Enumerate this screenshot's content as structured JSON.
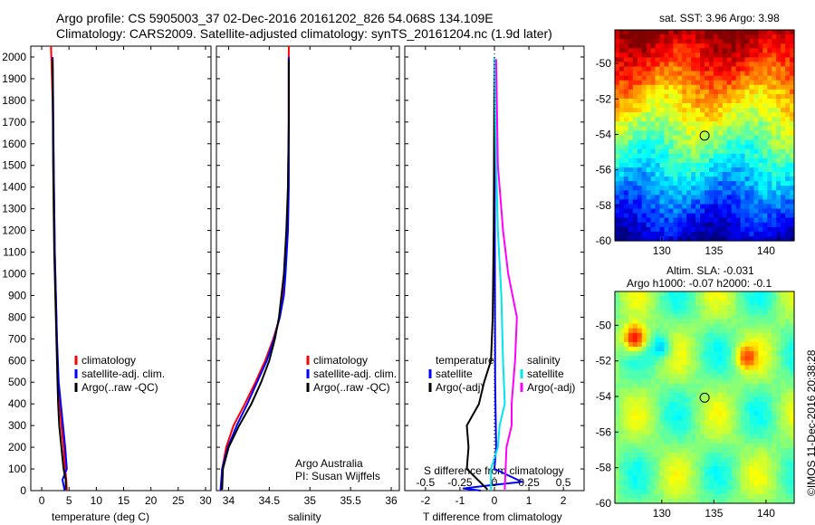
{
  "header": {
    "title_line1": "Argo profile: CS 5905003_37 02-Dec-2016 20161202_826 54.068S 134.109E",
    "title_line2": "Climatology: CARS2009. Satellite-adjusted climatology: synTS_20161204.nc (1.9d later)"
  },
  "colors": {
    "climatology": "#ff0000",
    "satellite": "#0000ff",
    "argo": "#000000",
    "salinity_satellite": "#00e5ee",
    "salinity_argo": "#ff00ff"
  },
  "chart_data": [
    {
      "type": "line",
      "name": "temperature",
      "xlabel": "temperature (deg C)",
      "ylabel": "",
      "xlim": [
        -2,
        31
      ],
      "ylim": [
        2050,
        0
      ],
      "xticks": [
        0,
        5,
        10,
        15,
        20,
        25,
        30
      ],
      "yticks": [
        0,
        100,
        200,
        300,
        400,
        500,
        600,
        700,
        800,
        900,
        1000,
        1100,
        1200,
        1300,
        1400,
        1500,
        1600,
        1700,
        1800,
        1900,
        2000
      ],
      "legend": [
        "climatology",
        "satellite-adj. clim.",
        "Argo(..raw -QC)"
      ],
      "series": [
        {
          "name": "climatology",
          "color": "#ff0000",
          "x": [
            4.6,
            4.5,
            4.3,
            4.0,
            3.6,
            3.3,
            3.0,
            2.8,
            2.6,
            2.4,
            2.3,
            2.2,
            2.0,
            1.7
          ],
          "y": [
            0,
            50,
            100,
            200,
            300,
            400,
            500,
            700,
            900,
            1100,
            1300,
            1500,
            1800,
            2050
          ]
        },
        {
          "name": "satellite-adj. clim.",
          "color": "#0000ff",
          "x": [
            4.2,
            3.8,
            4.6,
            4.3,
            3.9,
            3.5,
            3.1,
            2.8,
            2.6,
            2.4,
            2.3,
            2.2,
            2.1,
            2.0
          ],
          "y": [
            0,
            50,
            100,
            200,
            300,
            400,
            500,
            700,
            900,
            1100,
            1300,
            1500,
            1800,
            2000
          ]
        },
        {
          "name": "Argo(..raw -QC)",
          "color": "#000000",
          "x": [
            4.4,
            4.4,
            4.0,
            3.6,
            3.2,
            3.0,
            2.9,
            2.7,
            2.5,
            2.3,
            2.2,
            2.1,
            2.0
          ],
          "y": [
            5,
            50,
            100,
            200,
            300,
            400,
            500,
            700,
            900,
            1100,
            1300,
            1500,
            1990
          ]
        }
      ]
    },
    {
      "type": "line",
      "name": "salinity",
      "xlabel": "salinity",
      "ylabel": "",
      "xlim": [
        33.85,
        36.1
      ],
      "ylim": [
        2050,
        0
      ],
      "xticks": [
        34,
        34.5,
        35,
        35.5,
        36
      ],
      "xticklabels": [
        "34",
        "34.5",
        "35",
        "35.5",
        "36"
      ],
      "legend": [
        "climatology",
        "satellite-adj. clim.",
        "Argo(..raw -QC)"
      ],
      "annotations": [
        "Argo Australia",
        "PI: Susan Wijffels"
      ],
      "series": [
        {
          "name": "climatology",
          "color": "#ff0000",
          "x": [
            33.91,
            33.92,
            33.97,
            34.06,
            34.2,
            34.33,
            34.45,
            34.55,
            34.63,
            34.67,
            34.69,
            34.72,
            34.73,
            34.74,
            34.74
          ],
          "y": [
            0,
            100,
            200,
            300,
            400,
            500,
            600,
            700,
            800,
            900,
            1000,
            1200,
            1400,
            1700,
            2050
          ]
        },
        {
          "name": "satellite-adj. clim.",
          "color": "#0000ff",
          "x": [
            33.9,
            33.92,
            33.99,
            34.1,
            34.23,
            34.35,
            34.47,
            34.56,
            34.63,
            34.68,
            34.7,
            34.73,
            34.74,
            34.74,
            34.74
          ],
          "y": [
            0,
            100,
            200,
            300,
            400,
            500,
            600,
            700,
            800,
            900,
            1000,
            1200,
            1400,
            1700,
            2000
          ]
        },
        {
          "name": "Argo(..raw -QC)",
          "color": "#000000",
          "x": [
            33.92,
            33.93,
            34.0,
            34.13,
            34.28,
            34.4,
            34.5,
            34.57,
            34.62,
            34.65,
            34.68,
            34.71,
            34.73,
            34.74,
            34.74
          ],
          "y": [
            5,
            100,
            200,
            300,
            400,
            500,
            600,
            700,
            800,
            900,
            1000,
            1200,
            1400,
            1700,
            1990
          ]
        }
      ]
    },
    {
      "type": "line",
      "name": "difference from climatology",
      "xlabel": "T difference from climatology",
      "top_label": "S difference from climatology",
      "xlim": [
        -2.6,
        2.6
      ],
      "ylim": [
        2050,
        0
      ],
      "xticks": [
        -2,
        -1,
        0,
        1,
        2
      ],
      "top_xticklabels": [
        "-0.5",
        "-0.25",
        "0",
        "0.25",
        "0.5"
      ],
      "top_xticks_at": [
        -2,
        -1,
        0,
        1,
        2
      ],
      "legend": [
        "temperature",
        "satellite",
        "Argo(-adj)",
        "salinity",
        "satellite",
        "Argo(-adj)"
      ],
      "series": [
        {
          "name": "temperature satellite",
          "color": "#0000ff",
          "x": [
            -0.4,
            -0.9,
            -0.1,
            0.8,
            0.0,
            0.05,
            0.02,
            0.0
          ],
          "y": [
            0,
            10,
            25,
            40,
            100,
            200,
            500,
            2000
          ]
        },
        {
          "name": "temperature Argo(-adj)",
          "color": "#000000",
          "x": [
            -0.2,
            -0.8,
            -0.75,
            -0.8,
            -0.45,
            -0.3,
            -0.1,
            -0.05,
            -0.02,
            0.0
          ],
          "y": [
            5,
            100,
            200,
            300,
            400,
            500,
            600,
            800,
            1200,
            1990
          ]
        },
        {
          "name": "salinity satellite",
          "color": "#00e5ee",
          "x": [
            -0.1,
            -0.1,
            0.1,
            0.15,
            0.3,
            0.25,
            0.2,
            0.1,
            0.05,
            0.0
          ],
          "y": [
            0,
            100,
            200,
            300,
            400,
            600,
            900,
            1200,
            1500,
            2000
          ]
        },
        {
          "name": "salinity Argo(-adj)",
          "color": "#ff00ff",
          "x": [
            0.3,
            0.35,
            0.5,
            0.5,
            0.55,
            0.6,
            0.65,
            0.4,
            0.25,
            0.1,
            0.05
          ],
          "y": [
            5,
            200,
            300,
            400,
            500,
            600,
            800,
            1000,
            1200,
            1500,
            1990
          ]
        }
      ]
    },
    {
      "type": "heatmap",
      "name": "sat. SST",
      "title": "sat. SST: 3.96  Argo: 3.98",
      "xticks": [
        130,
        135,
        140
      ],
      "yticks": [
        -50,
        -52,
        -54,
        -56,
        -58,
        -60
      ],
      "xlim": [
        125.5,
        142.7
      ],
      "ylim": [
        -60,
        -48.1
      ],
      "marker": {
        "lon": 134.109,
        "lat": -54.068
      }
    },
    {
      "type": "heatmap",
      "name": "Altim. SLA",
      "title_line1": "Altim. SLA: -0.031",
      "title_line2": "Argo h1000: -0.07  h2000: -0.1",
      "xticks": [
        130,
        135,
        140
      ],
      "yticks": [
        -50,
        -52,
        -54,
        -56,
        -58,
        -60
      ],
      "xlim": [
        125.5,
        142.7
      ],
      "ylim": [
        -60,
        -48.1
      ],
      "marker": {
        "lon": 134.109,
        "lat": -54.068
      }
    }
  ],
  "footer": {
    "credit": "©IMOS 11-Dec-2016 20:38:28"
  }
}
